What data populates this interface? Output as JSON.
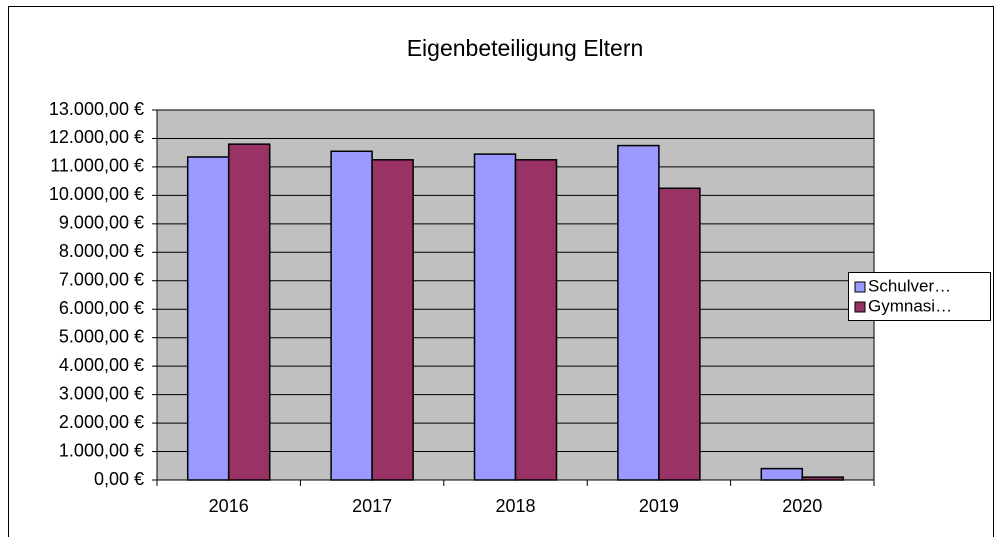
{
  "chart_data": {
    "type": "bar",
    "title": "Eigenbeteiligung Eltern",
    "categories": [
      "2016",
      "2017",
      "2018",
      "2019",
      "2020"
    ],
    "series": [
      {
        "name": "Schulver…",
        "color": "#9999ff",
        "values": [
          11350,
          11550,
          11450,
          11750,
          400
        ]
      },
      {
        "name": "Gymnasi…",
        "color": "#993366",
        "values": [
          11800,
          11250,
          11250,
          10250,
          100
        ]
      }
    ],
    "ylim": [
      0,
      13000
    ],
    "yticks": [
      {
        "value": 0,
        "label": "0,00 €"
      },
      {
        "value": 1000,
        "label": "1.000,00 €"
      },
      {
        "value": 2000,
        "label": "2.000,00 €"
      },
      {
        "value": 3000,
        "label": "3.000,00 €"
      },
      {
        "value": 4000,
        "label": "4.000,00 €"
      },
      {
        "value": 5000,
        "label": "5.000,00 €"
      },
      {
        "value": 6000,
        "label": "6.000,00 €"
      },
      {
        "value": 7000,
        "label": "7.000,00 €"
      },
      {
        "value": 8000,
        "label": "8.000,00 €"
      },
      {
        "value": 9000,
        "label": "9.000,00 €"
      },
      {
        "value": 10000,
        "label": "10.000,00 €"
      },
      {
        "value": 11000,
        "label": "11.000,00 €"
      },
      {
        "value": 12000,
        "label": "12.000,00 €"
      },
      {
        "value": 13000,
        "label": "13.000,00 €"
      }
    ],
    "grid": true,
    "legend": "right"
  }
}
